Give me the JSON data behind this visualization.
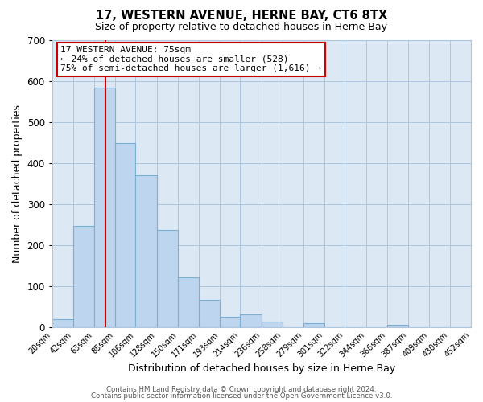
{
  "title": "17, WESTERN AVENUE, HERNE BAY, CT6 8TX",
  "subtitle": "Size of property relative to detached houses in Herne Bay",
  "xlabel": "Distribution of detached houses by size in Herne Bay",
  "ylabel": "Number of detached properties",
  "bar_labels": [
    "20sqm",
    "42sqm",
    "63sqm",
    "85sqm",
    "106sqm",
    "128sqm",
    "150sqm",
    "171sqm",
    "193sqm",
    "214sqm",
    "236sqm",
    "258sqm",
    "279sqm",
    "301sqm",
    "322sqm",
    "344sqm",
    "366sqm",
    "387sqm",
    "409sqm",
    "430sqm",
    "452sqm"
  ],
  "bar_values": [
    18,
    246,
    585,
    449,
    371,
    236,
    121,
    67,
    25,
    31,
    13,
    0,
    10,
    0,
    0,
    0,
    5,
    0,
    0,
    0,
    3
  ],
  "bar_color": "#bdd5ee",
  "bar_edgecolor": "#7ab0d4",
  "background_color": "#ffffff",
  "plot_bg_color": "#dce9f5",
  "grid_color": "#aec6de",
  "vline_x_index": 2,
  "vline_color": "#cc0000",
  "bin_edges": [
    20,
    42,
    63,
    85,
    106,
    128,
    150,
    171,
    193,
    214,
    236,
    258,
    279,
    301,
    322,
    344,
    366,
    387,
    409,
    430,
    452
  ],
  "ylim": [
    0,
    700
  ],
  "yticks": [
    0,
    100,
    200,
    300,
    400,
    500,
    600,
    700
  ],
  "annotation_line1": "17 WESTERN AVENUE: 75sqm",
  "annotation_line2": "← 24% of detached houses are smaller (528)",
  "annotation_line3": "75% of semi-detached houses are larger (1,616) →",
  "annotation_box_color": "#ffffff",
  "annotation_box_edge": "#cc0000",
  "footnote1": "Contains HM Land Registry data © Crown copyright and database right 2024.",
  "footnote2": "Contains public sector information licensed under the Open Government Licence v3.0."
}
